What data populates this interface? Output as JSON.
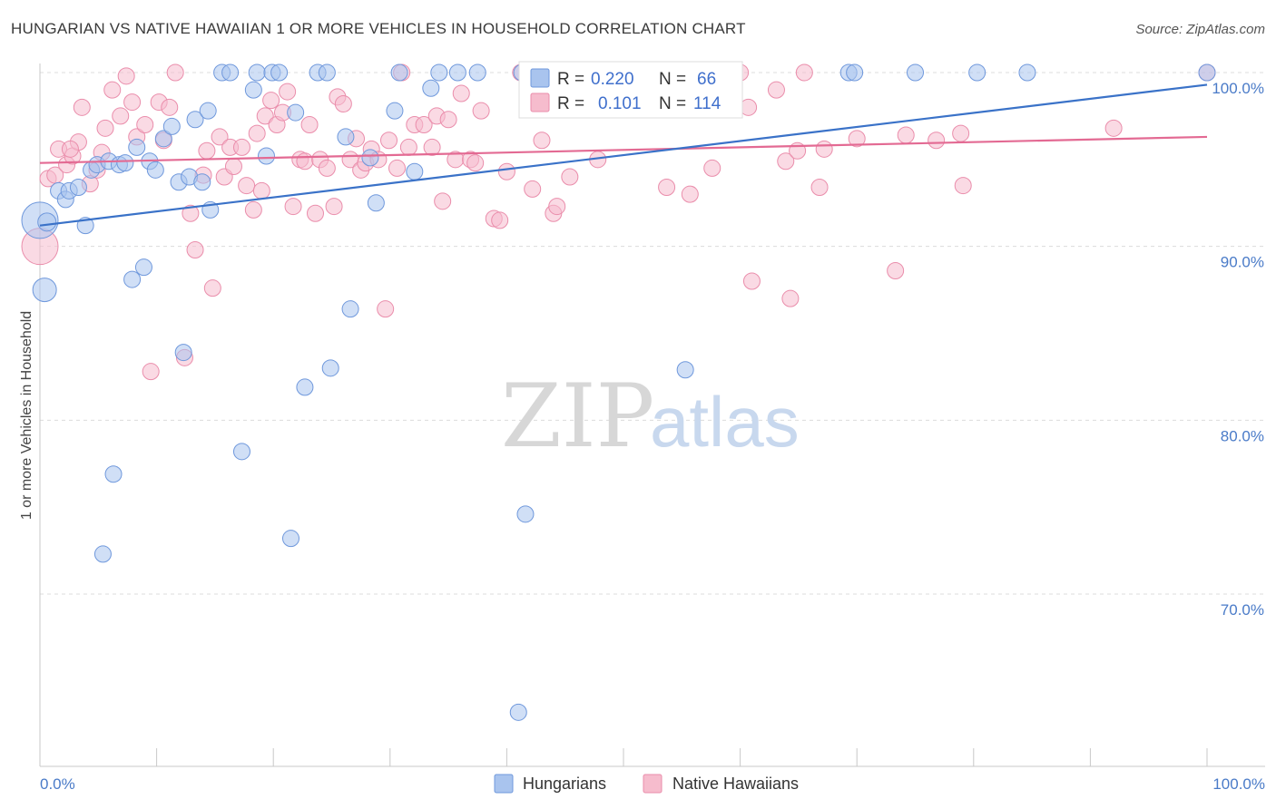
{
  "title": "HUNGARIAN VS NATIVE HAWAIIAN 1 OR MORE VEHICLES IN HOUSEHOLD CORRELATION CHART",
  "source": "Source: ZipAtlas.com",
  "watermark": {
    "part1": "ZIP",
    "part2": "atlas"
  },
  "colors": {
    "blue_fill": "#a9c4ee",
    "blue_stroke": "#6f98dc",
    "blue_line": "#3a72c8",
    "pink_fill": "#f6bccd",
    "pink_stroke": "#ea8dab",
    "pink_line": "#e36a93",
    "tick_text": "#4a7bc8",
    "grid": "#dcdcdc"
  },
  "legend_top": {
    "rows": [
      {
        "r_label": "R = ",
        "r_value": "0.220",
        "n_label": "N = ",
        "n_value": "66"
      },
      {
        "r_label": "R = ",
        "r_value": "0.101",
        "n_label": "N = ",
        "n_value": "114"
      }
    ]
  },
  "legend_bottom": [
    "Hungarians",
    "Native Hawaiians"
  ],
  "chart_data": {
    "type": "scatter",
    "title": "HUNGARIAN VS NATIVE HAWAIIAN 1 OR MORE VEHICLES IN HOUSEHOLD CORRELATION CHART",
    "xlabel": "",
    "ylabel": "1 or more Vehicles in Household",
    "xlim": [
      0,
      100
    ],
    "ylim": [
      60,
      101.5
    ],
    "x_tick_labels": [
      "0.0%",
      "100.0%"
    ],
    "y_ticks": [
      70,
      80,
      90,
      100
    ],
    "y_tick_labels": [
      "70.0%",
      "80.0%",
      "90.0%",
      "100.0%"
    ],
    "grid": true,
    "series": [
      {
        "name": "Hungarians",
        "r": 0.22,
        "n": 66,
        "trend": {
          "x": [
            0,
            100
          ],
          "y": [
            91.2,
            99.3
          ]
        },
        "points": [
          [
            0.0,
            91.5,
            20
          ],
          [
            0.4,
            87.5,
            13
          ],
          [
            0.6,
            91.4,
            10
          ],
          [
            1.6,
            93.2,
            9
          ],
          [
            2.2,
            92.7,
            9
          ],
          [
            2.5,
            93.2,
            9
          ],
          [
            3.3,
            93.4,
            9
          ],
          [
            3.9,
            91.2,
            9
          ],
          [
            4.4,
            94.4,
            9
          ],
          [
            4.9,
            94.7,
            9
          ],
          [
            5.4,
            72.3,
            9
          ],
          [
            5.9,
            94.9,
            9
          ],
          [
            6.3,
            76.9,
            9
          ],
          [
            6.8,
            94.7,
            9
          ],
          [
            7.3,
            94.8,
            9
          ],
          [
            7.9,
            88.1,
            9
          ],
          [
            8.3,
            95.7,
            9
          ],
          [
            8.9,
            88.8,
            9
          ],
          [
            9.4,
            94.9,
            9
          ],
          [
            9.9,
            94.4,
            9
          ],
          [
            10.6,
            96.2,
            9
          ],
          [
            11.3,
            96.9,
            9
          ],
          [
            11.9,
            93.7,
            9
          ],
          [
            12.3,
            83.9,
            9
          ],
          [
            12.8,
            94.0,
            9
          ],
          [
            13.3,
            97.3,
            9
          ],
          [
            13.9,
            93.7,
            9
          ],
          [
            14.4,
            97.8,
            9
          ],
          [
            14.6,
            92.1,
            9
          ],
          [
            15.6,
            100.0,
            9
          ],
          [
            16.3,
            100.0,
            9
          ],
          [
            17.3,
            78.2,
            9
          ],
          [
            18.3,
            99.0,
            9
          ],
          [
            18.6,
            100.0,
            9
          ],
          [
            19.4,
            95.2,
            9
          ],
          [
            19.9,
            100.0,
            9
          ],
          [
            20.5,
            100.0,
            9
          ],
          [
            21.5,
            73.2,
            9
          ],
          [
            21.9,
            97.7,
            9
          ],
          [
            22.7,
            81.9,
            9
          ],
          [
            23.8,
            100.0,
            9
          ],
          [
            24.6,
            100.0,
            9
          ],
          [
            24.9,
            83.0,
            9
          ],
          [
            26.2,
            96.3,
            9
          ],
          [
            26.6,
            86.4,
            9
          ],
          [
            28.3,
            95.1,
            9
          ],
          [
            28.8,
            92.5,
            9
          ],
          [
            30.4,
            97.8,
            9
          ],
          [
            30.8,
            100.0,
            9
          ],
          [
            32.1,
            94.3,
            9
          ],
          [
            33.5,
            99.1,
            9
          ],
          [
            34.2,
            100.0,
            9
          ],
          [
            35.8,
            100.0,
            9
          ],
          [
            37.5,
            100.0,
            9
          ],
          [
            41.0,
            63.2,
            9
          ],
          [
            41.3,
            100.0,
            9
          ],
          [
            41.6,
            74.6,
            9
          ],
          [
            50.8,
            100.0,
            9
          ],
          [
            53.8,
            100.0,
            9
          ],
          [
            55.3,
            82.9,
            9
          ],
          [
            69.3,
            100.0,
            9
          ],
          [
            69.8,
            100.0,
            9
          ],
          [
            75.0,
            100.0,
            9
          ],
          [
            80.3,
            100.0,
            9
          ],
          [
            84.6,
            100.0,
            9
          ],
          [
            100.0,
            100.0,
            9
          ]
        ]
      },
      {
        "name": "Native Hawaiians",
        "r": 0.101,
        "n": 114,
        "trend": {
          "x": [
            0,
            100
          ],
          "y": [
            94.8,
            96.3
          ]
        },
        "points": [
          [
            0.0,
            90.0,
            20
          ],
          [
            0.7,
            93.9,
            9
          ],
          [
            1.3,
            94.1,
            9
          ],
          [
            1.6,
            95.6,
            9
          ],
          [
            2.3,
            94.7,
            9
          ],
          [
            2.8,
            95.2,
            9
          ],
          [
            3.3,
            96.0,
            9
          ],
          [
            3.6,
            98.0,
            9
          ],
          [
            4.3,
            93.6,
            9
          ],
          [
            4.9,
            94.4,
            9
          ],
          [
            5.3,
            95.4,
            9
          ],
          [
            5.6,
            96.8,
            9
          ],
          [
            6.2,
            99.0,
            9
          ],
          [
            6.9,
            97.5,
            9
          ],
          [
            7.4,
            99.8,
            9
          ],
          [
            7.9,
            98.3,
            9
          ],
          [
            8.3,
            96.3,
            9
          ],
          [
            9.0,
            97.0,
            9
          ],
          [
            9.5,
            82.8,
            9
          ],
          [
            10.2,
            98.3,
            9
          ],
          [
            10.6,
            96.1,
            9
          ],
          [
            11.1,
            98.0,
            9
          ],
          [
            11.6,
            100.0,
            9
          ],
          [
            12.4,
            83.6,
            9
          ],
          [
            12.9,
            91.9,
            9
          ],
          [
            13.3,
            89.8,
            9
          ],
          [
            14.0,
            94.1,
            9
          ],
          [
            14.3,
            95.5,
            9
          ],
          [
            14.8,
            87.6,
            9
          ],
          [
            15.4,
            96.3,
            9
          ],
          [
            15.8,
            94.0,
            9
          ],
          [
            16.3,
            95.7,
            9
          ],
          [
            16.6,
            94.6,
            9
          ],
          [
            17.3,
            95.7,
            9
          ],
          [
            17.7,
            93.5,
            9
          ],
          [
            18.3,
            92.1,
            9
          ],
          [
            18.6,
            96.5,
            9
          ],
          [
            19.0,
            93.2,
            9
          ],
          [
            19.3,
            97.5,
            9
          ],
          [
            19.8,
            98.4,
            9
          ],
          [
            20.3,
            97.0,
            9
          ],
          [
            20.8,
            97.7,
            9
          ],
          [
            21.2,
            98.9,
            9
          ],
          [
            21.7,
            92.3,
            9
          ],
          [
            22.3,
            95.0,
            9
          ],
          [
            22.7,
            94.9,
            9
          ],
          [
            23.1,
            97.0,
            9
          ],
          [
            23.6,
            91.9,
            9
          ],
          [
            24.0,
            95.0,
            9
          ],
          [
            24.6,
            94.5,
            9
          ],
          [
            25.2,
            92.3,
            9
          ],
          [
            25.5,
            98.6,
            9
          ],
          [
            26.0,
            98.2,
            9
          ],
          [
            26.6,
            95.0,
            9
          ],
          [
            27.1,
            96.2,
            9
          ],
          [
            27.5,
            94.4,
            9
          ],
          [
            27.9,
            94.8,
            9
          ],
          [
            28.4,
            95.6,
            9
          ],
          [
            29.0,
            95.0,
            9
          ],
          [
            29.6,
            86.4,
            9
          ],
          [
            29.9,
            96.1,
            9
          ],
          [
            30.6,
            94.5,
            9
          ],
          [
            31.0,
            100.0,
            9
          ],
          [
            31.6,
            95.7,
            9
          ],
          [
            32.1,
            97.0,
            9
          ],
          [
            32.9,
            97.0,
            9
          ],
          [
            33.6,
            95.7,
            9
          ],
          [
            34.0,
            97.5,
            9
          ],
          [
            34.5,
            92.6,
            9
          ],
          [
            35.0,
            97.3,
            9
          ],
          [
            35.6,
            95.0,
            9
          ],
          [
            36.1,
            98.8,
            9
          ],
          [
            36.9,
            95.0,
            9
          ],
          [
            37.3,
            94.8,
            9
          ],
          [
            37.8,
            97.8,
            9
          ],
          [
            38.9,
            91.6,
            9
          ],
          [
            39.4,
            91.5,
            9
          ],
          [
            40.0,
            94.3,
            9
          ],
          [
            41.2,
            100.0,
            9
          ],
          [
            41.8,
            98.8,
            9
          ],
          [
            42.2,
            93.3,
            9
          ],
          [
            43.0,
            96.1,
            9
          ],
          [
            44.0,
            91.9,
            9
          ],
          [
            44.3,
            92.3,
            9
          ],
          [
            45.4,
            94.0,
            9
          ],
          [
            46.3,
            98.7,
            9
          ],
          [
            47.1,
            99.0,
            9
          ],
          [
            47.8,
            95.0,
            9
          ],
          [
            49.6,
            98.0,
            9
          ],
          [
            51.1,
            100.0,
            9
          ],
          [
            53.7,
            93.4,
            9
          ],
          [
            54.2,
            100.0,
            9
          ],
          [
            55.0,
            98.3,
            9
          ],
          [
            55.7,
            93.0,
            9
          ],
          [
            57.6,
            94.5,
            9
          ],
          [
            60.0,
            100.0,
            9
          ],
          [
            60.7,
            98.0,
            9
          ],
          [
            61.0,
            88.0,
            9
          ],
          [
            63.1,
            99.0,
            9
          ],
          [
            63.9,
            94.9,
            9
          ],
          [
            64.3,
            87.0,
            9
          ],
          [
            64.9,
            95.5,
            9
          ],
          [
            65.5,
            100.0,
            9
          ],
          [
            66.8,
            93.4,
            9
          ],
          [
            67.2,
            95.6,
            9
          ],
          [
            70.0,
            96.2,
            9
          ],
          [
            73.3,
            88.6,
            9
          ],
          [
            74.2,
            96.4,
            9
          ],
          [
            76.8,
            96.1,
            9
          ],
          [
            78.9,
            96.5,
            9
          ],
          [
            79.1,
            93.5,
            9
          ],
          [
            92.0,
            96.8,
            9
          ],
          [
            100.0,
            100.0,
            9
          ],
          [
            2.6,
            95.6,
            9
          ]
        ]
      }
    ]
  }
}
